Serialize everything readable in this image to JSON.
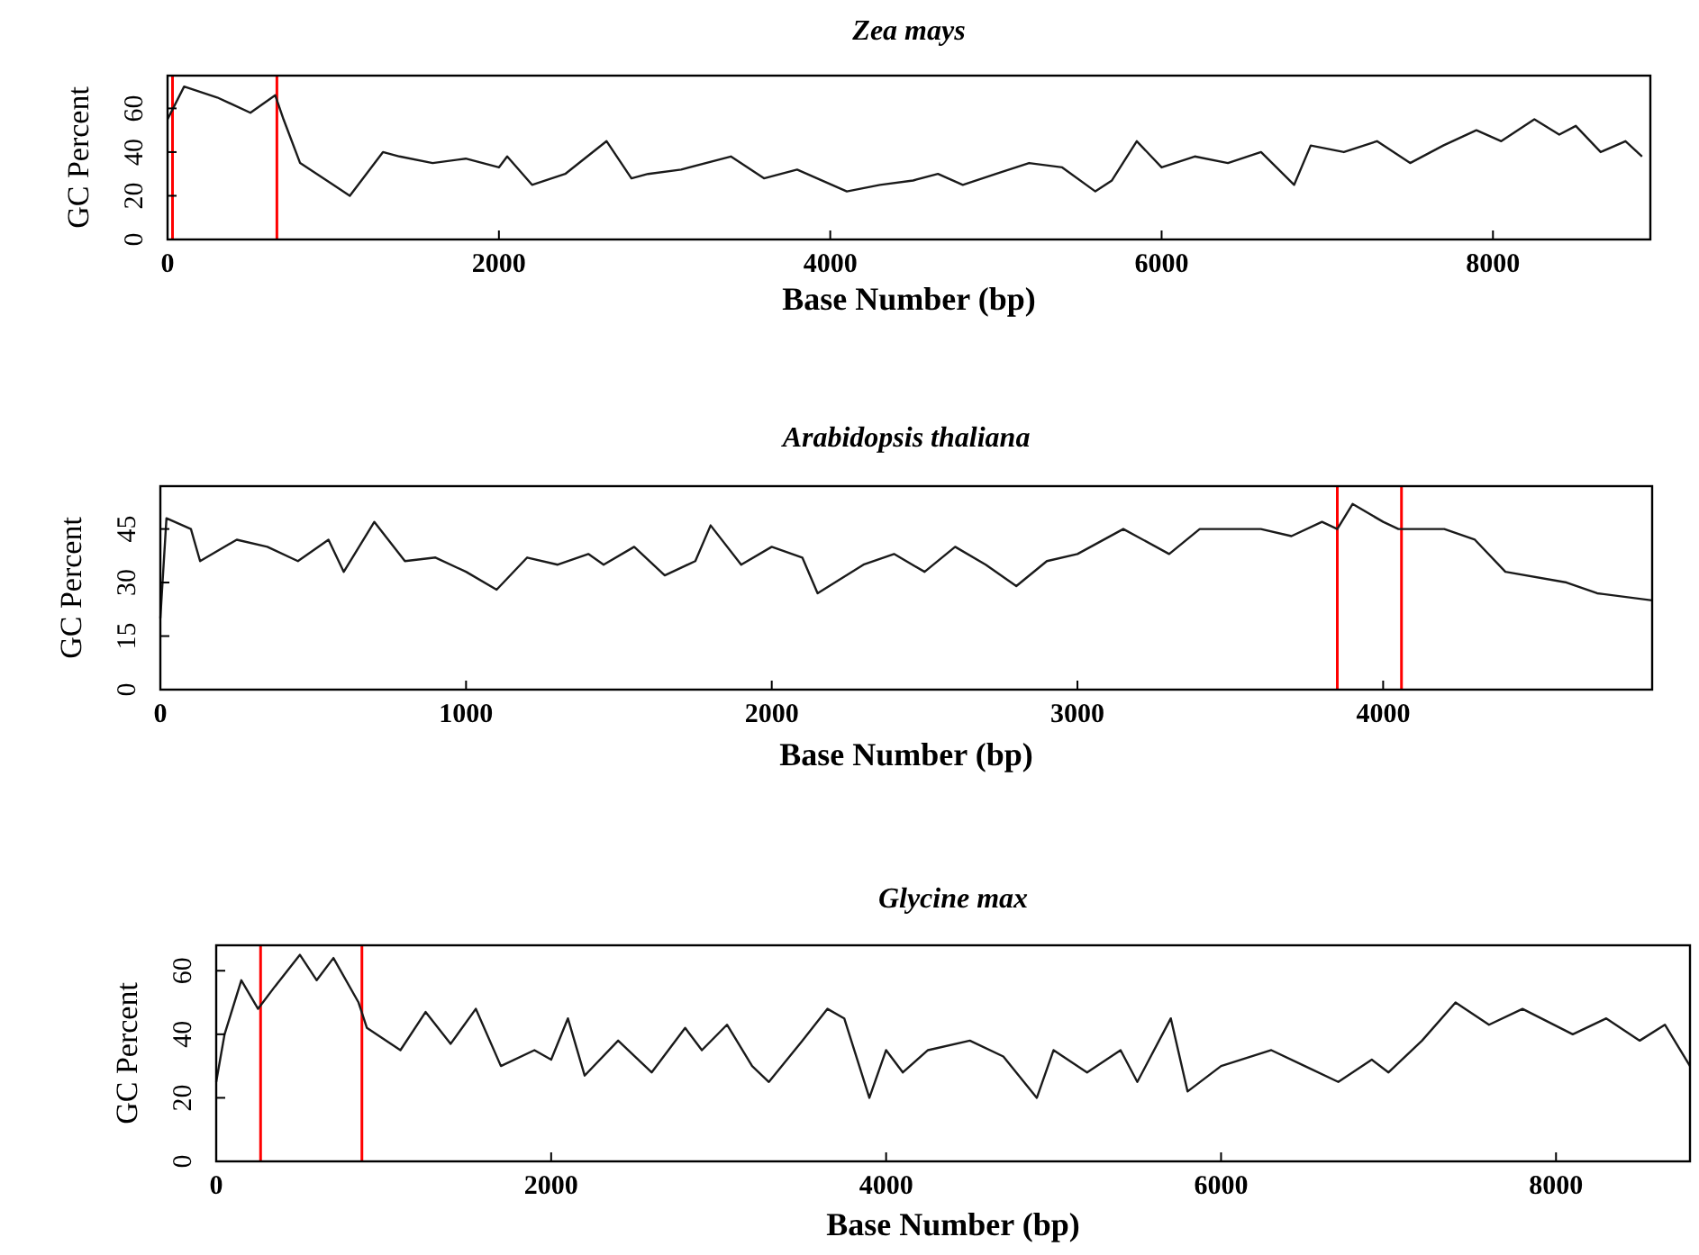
{
  "chart_data": [
    {
      "type": "line",
      "title": "Zea mays",
      "xlabel": "Base Number (bp)",
      "ylabel": "GC  Percent",
      "xlim": [
        0,
        8950
      ],
      "ylim": [
        0,
        75
      ],
      "xticks": [
        0,
        2000,
        4000,
        6000,
        8000
      ],
      "yticks": [
        0,
        20,
        40,
        60
      ],
      "grid": false,
      "ref_lines": [
        {
          "axis": "x",
          "value": 30,
          "color": "#ff0000"
        },
        {
          "axis": "x",
          "value": 660,
          "color": "#ff0000"
        }
      ],
      "series": [
        {
          "color": "#1a1a1a",
          "x": [
            0,
            100,
            300,
            500,
            650,
            700,
            800,
            1000,
            1100,
            1200,
            1300,
            1400,
            1600,
            1800,
            2000,
            2050,
            2200,
            2400,
            2650,
            2800,
            2900,
            3100,
            3400,
            3600,
            3800,
            4100,
            4300,
            4500,
            4650,
            4800,
            5000,
            5200,
            5400,
            5600,
            5700,
            5850,
            6000,
            6200,
            6400,
            6600,
            6800,
            6900,
            7100,
            7300,
            7500,
            7700,
            7900,
            8050,
            8250,
            8400,
            8500,
            8650,
            8800,
            8900
          ],
          "values": [
            55,
            70,
            65,
            58,
            66,
            55,
            35,
            25,
            20,
            30,
            40,
            38,
            35,
            37,
            33,
            38,
            25,
            30,
            45,
            28,
            30,
            32,
            38,
            28,
            32,
            22,
            25,
            27,
            30,
            25,
            30,
            35,
            33,
            22,
            27,
            45,
            33,
            38,
            35,
            40,
            25,
            43,
            40,
            45,
            35,
            43,
            50,
            45,
            55,
            48,
            52,
            40,
            45,
            38
          ]
        }
      ]
    },
    {
      "type": "line",
      "title": "Arabidopsis thaliana",
      "xlabel": "Base Number (bp)",
      "ylabel": "GC  Percent",
      "xlim": [
        0,
        4880
      ],
      "ylim": [
        0,
        57
      ],
      "xticks": [
        0,
        1000,
        2000,
        3000,
        4000
      ],
      "yticks": [
        0,
        15,
        30,
        45
      ],
      "grid": false,
      "ref_lines": [
        {
          "axis": "x",
          "value": 3850,
          "color": "#ff0000"
        },
        {
          "axis": "x",
          "value": 4060,
          "color": "#ff0000"
        }
      ],
      "series": [
        {
          "color": "#1a1a1a",
          "x": [
            0,
            20,
            100,
            130,
            250,
            350,
            450,
            550,
            600,
            700,
            800,
            900,
            1000,
            1100,
            1200,
            1300,
            1400,
            1450,
            1550,
            1650,
            1750,
            1800,
            1900,
            2000,
            2100,
            2150,
            2300,
            2400,
            2500,
            2600,
            2700,
            2800,
            2900,
            3000,
            3150,
            3300,
            3400,
            3600,
            3700,
            3800,
            3850,
            3900,
            4000,
            4050,
            4200,
            4300,
            4400,
            4600,
            4700,
            4880
          ],
          "values": [
            20,
            48,
            45,
            36,
            42,
            40,
            36,
            42,
            33,
            47,
            36,
            37,
            33,
            28,
            37,
            35,
            38,
            35,
            40,
            32,
            36,
            46,
            35,
            40,
            37,
            27,
            35,
            38,
            33,
            40,
            35,
            29,
            36,
            38,
            45,
            38,
            45,
            45,
            43,
            47,
            45,
            52,
            47,
            45,
            45,
            42,
            33,
            30,
            27,
            25
          ]
        }
      ]
    },
    {
      "type": "line",
      "title": "Glycine max",
      "xlabel": "Base Number (bp)",
      "ylabel": "GC  Percent",
      "xlim": [
        0,
        8800
      ],
      "ylim": [
        0,
        68
      ],
      "xticks": [
        0,
        2000,
        4000,
        6000,
        8000
      ],
      "yticks": [
        0,
        20,
        40,
        60
      ],
      "grid": false,
      "ref_lines": [
        {
          "axis": "x",
          "value": 265,
          "color": "#ff0000"
        },
        {
          "axis": "x",
          "value": 870,
          "color": "#ff0000"
        }
      ],
      "series": [
        {
          "color": "#1a1a1a",
          "x": [
            0,
            50,
            150,
            250,
            350,
            500,
            600,
            700,
            850,
            900,
            1100,
            1250,
            1400,
            1550,
            1700,
            1900,
            2000,
            2100,
            2200,
            2400,
            2600,
            2800,
            2900,
            3050,
            3200,
            3300,
            3500,
            3650,
            3750,
            3900,
            4000,
            4100,
            4250,
            4500,
            4700,
            4900,
            5000,
            5200,
            5400,
            5500,
            5700,
            5800,
            6000,
            6300,
            6500,
            6700,
            6900,
            7000,
            7200,
            7400,
            7600,
            7800,
            8100,
            8300,
            8500,
            8650,
            8800
          ],
          "values": [
            25,
            40,
            57,
            48,
            55,
            65,
            57,
            64,
            50,
            42,
            35,
            47,
            37,
            48,
            30,
            35,
            32,
            45,
            27,
            38,
            28,
            42,
            35,
            43,
            30,
            25,
            38,
            48,
            45,
            20,
            35,
            28,
            35,
            38,
            33,
            20,
            35,
            28,
            35,
            25,
            45,
            22,
            30,
            35,
            30,
            25,
            32,
            28,
            38,
            50,
            43,
            48,
            40,
            45,
            38,
            43,
            30
          ]
        }
      ]
    }
  ]
}
